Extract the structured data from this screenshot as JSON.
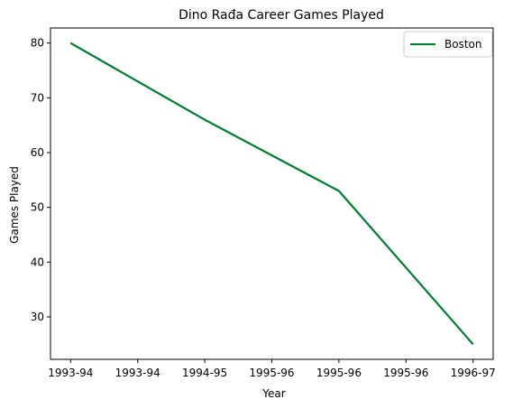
{
  "chart_data": {
    "type": "line",
    "title": "Dino Rađa Career Games Played",
    "xlabel": "Year",
    "ylabel": "Games Played",
    "categories": [
      "1993-94",
      "1993-94",
      "1994-95",
      "1995-96",
      "1995-96",
      "1995-96",
      "1996-97"
    ],
    "series": [
      {
        "name": "Boston",
        "color": "#007a33",
        "points": [
          {
            "x": 0,
            "y": 80
          },
          {
            "x": 2,
            "y": 66
          },
          {
            "x": 4,
            "y": 53
          },
          {
            "x": 6,
            "y": 25
          }
        ]
      }
    ],
    "ylim": [
      22.25,
      82.75
    ],
    "yticks": [
      30,
      40,
      50,
      60,
      70,
      80
    ],
    "xlim": [
      -0.3,
      6.3
    ],
    "grid": false,
    "legend_position": "upper-right"
  }
}
